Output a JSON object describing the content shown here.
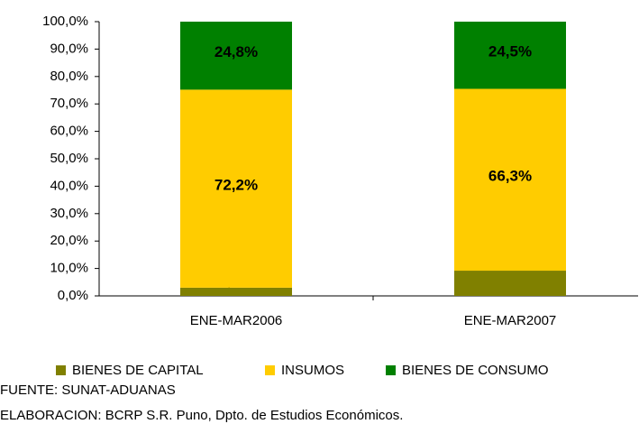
{
  "chart_data": {
    "type": "stacked_bar",
    "categories": [
      "ENE-MAR2006",
      "ENE-MAR2007"
    ],
    "series": [
      {
        "name": "BIENES DE CAPITAL",
        "color": "#808000",
        "values": [
          3.0,
          9.2
        ],
        "value_labels": [
          "3,0%",
          "9,2%"
        ]
      },
      {
        "name": "INSUMOS",
        "color": "#ffcc00",
        "values": [
          72.2,
          66.3
        ],
        "value_labels": [
          "72,2%",
          "66,3%"
        ]
      },
      {
        "name": "BIENES DE CONSUMO",
        "color": "#008000",
        "values": [
          24.8,
          24.5
        ],
        "value_labels": [
          "24,8%",
          "24,5%"
        ]
      }
    ],
    "ylim": [
      0,
      100
    ],
    "yticks": [
      {
        "value": 0,
        "label": "0,0%"
      },
      {
        "value": 10,
        "label": "10,0%"
      },
      {
        "value": 20,
        "label": "20,0%"
      },
      {
        "value": 30,
        "label": "30,0%"
      },
      {
        "value": 40,
        "label": "40,0%"
      },
      {
        "value": 50,
        "label": "50,0%"
      },
      {
        "value": 60,
        "label": "60,0%"
      },
      {
        "value": 70,
        "label": "70,0%"
      },
      {
        "value": 80,
        "label": "80,0%"
      },
      {
        "value": 90,
        "label": "90,0%"
      },
      {
        "value": 100,
        "label": "100,0%"
      }
    ],
    "grid": false,
    "legend": "bottom",
    "source": "FUENTE: SUNAT-ADUANAS",
    "credit": "ELABORACION: BCRP S.R. Puno, Dpto. de Estudios Económicos."
  }
}
